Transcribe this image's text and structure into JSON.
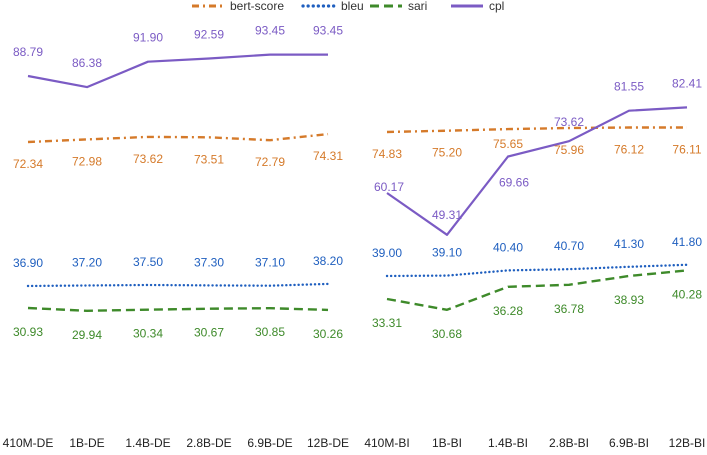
{
  "chart_data": [
    {
      "type": "line",
      "panel": "DE",
      "categories": [
        "410M-DE",
        "1B-DE",
        "1.4B-DE",
        "2.8B-DE",
        "6.9B-DE",
        "12B-DE"
      ],
      "series": [
        {
          "name": "bert-score",
          "values": [
            72.34,
            72.98,
            73.62,
            73.51,
            72.79,
            74.31
          ],
          "labels": [
            "72.34",
            "72.98",
            "73.62",
            "73.51",
            "72.79",
            "74.31"
          ]
        },
        {
          "name": "bleu",
          "values": [
            36.9,
            37.2,
            37.5,
            37.3,
            37.1,
            38.2
          ],
          "labels": [
            "36.90",
            "37.20",
            "37.50",
            "37.30",
            "37.10",
            "38.20"
          ]
        },
        {
          "name": "sari",
          "values": [
            30.93,
            29.94,
            30.34,
            30.67,
            30.85,
            30.26
          ],
          "labels": [
            "30.93",
            "29.94",
            "30.34",
            "30.67",
            "30.85",
            "30.26"
          ]
        },
        {
          "name": "cpl",
          "values": [
            88.79,
            86.38,
            91.9,
            92.59,
            93.45,
            93.45
          ],
          "labels": [
            "88.79",
            "86.38",
            "91.90",
            "92.59",
            "93.45",
            "93.45"
          ]
        }
      ]
    },
    {
      "type": "line",
      "panel": "BI",
      "categories": [
        "410M-BI",
        "1B-BI",
        "1.4B-BI",
        "2.8B-BI",
        "6.9B-BI",
        "12B-BI"
      ],
      "series": [
        {
          "name": "bert-score",
          "values": [
            74.83,
            75.2,
            75.65,
            75.96,
            76.12,
            76.11
          ],
          "labels": [
            "74.83",
            "75.20",
            "75.65",
            "75.96",
            "76.12",
            "76.11"
          ]
        },
        {
          "name": "bleu",
          "values": [
            39.0,
            39.1,
            40.4,
            40.7,
            41.3,
            41.8
          ],
          "labels": [
            "39.00",
            "39.10",
            "40.40",
            "40.70",
            "41.30",
            "41.80"
          ]
        },
        {
          "name": "sari",
          "values": [
            33.31,
            30.68,
            36.28,
            36.78,
            38.93,
            40.28
          ],
          "labels": [
            "33.31",
            "30.68",
            "36.28",
            "36.78",
            "38.93",
            "40.28"
          ]
        },
        {
          "name": "cpl",
          "values": [
            60.17,
            49.31,
            69.66,
            73.62,
            81.55,
            82.41
          ],
          "labels": [
            "60.17",
            "49.31",
            "69.66",
            "73.62",
            "81.55",
            "82.41"
          ]
        }
      ]
    }
  ],
  "legend": [
    {
      "name": "bert-score",
      "color": "#d57a2a",
      "dash": "dashdot"
    },
    {
      "name": "bleu",
      "color": "#1f5fbf",
      "dash": "dotted"
    },
    {
      "name": "sari",
      "color": "#3e8a2a",
      "dash": "dashed"
    },
    {
      "name": "cpl",
      "color": "#7b5bc4",
      "dash": "solid"
    }
  ]
}
